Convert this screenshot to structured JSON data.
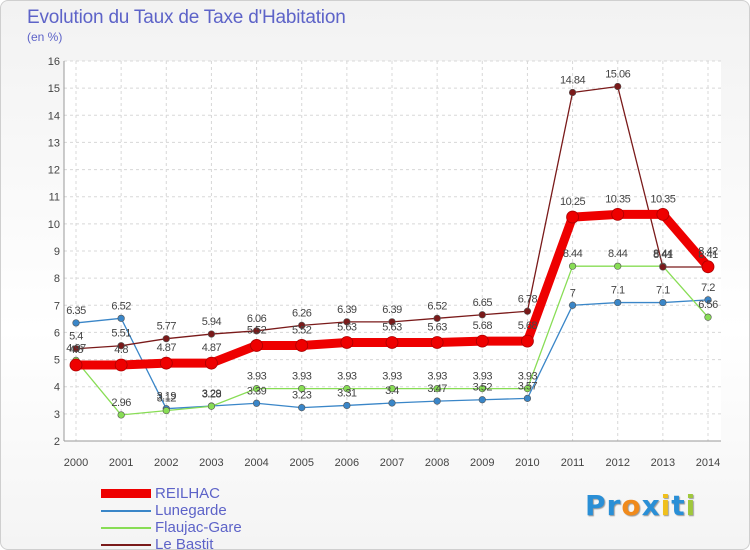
{
  "title": "Evolution du Taux de Taxe d'Habitation",
  "unit_label": "(en %)",
  "logo": {
    "letters": [
      "P",
      "r",
      "o",
      "x",
      "i",
      "t",
      "i"
    ],
    "colors": [
      "#2a8fd6",
      "#2a8fd6",
      "#f08a1c",
      "#2a8fd6",
      "#f0c01c",
      "#2a8fd6",
      "#a0c83c"
    ]
  },
  "chart_data": {
    "type": "line",
    "title": "Evolution du Taux de Taxe d'Habitation",
    "ylabel": "(en %)",
    "xlabel": "",
    "ylim": [
      2,
      16
    ],
    "yticks": [
      2,
      3,
      4,
      5,
      6,
      7,
      8,
      9,
      10,
      11,
      12,
      13,
      14,
      15,
      16
    ],
    "x": [
      "2000",
      "2001",
      "2002",
      "2003",
      "2004",
      "2005",
      "2006",
      "2007",
      "2008",
      "2009",
      "2010",
      "2011",
      "2012",
      "2013",
      "2014"
    ],
    "grid": true,
    "legend_position": "bottom-left",
    "series": [
      {
        "name": "REILHAC",
        "color": "#ee0000",
        "values": [
          4.8,
          4.8,
          4.87,
          4.87,
          5.52,
          5.52,
          5.63,
          5.63,
          5.63,
          5.68,
          5.68,
          10.25,
          10.35,
          10.35,
          8.42
        ],
        "labels": [
          "4.8",
          "4.8",
          "4.87",
          "4.87",
          "5.52",
          "5.52",
          "5.63",
          "5.63",
          "5.63",
          "5.68",
          "5.68",
          "10.25",
          "10.35",
          "10.35",
          "8.42"
        ]
      },
      {
        "name": "Lunegarde",
        "color": "#3a86c8",
        "values": [
          6.35,
          6.52,
          3.19,
          3.29,
          3.39,
          3.23,
          3.31,
          3.4,
          3.47,
          3.52,
          3.57,
          7,
          7.1,
          7.1,
          7.2
        ],
        "labels": [
          "6.35",
          "6.52",
          "3.19",
          "3.29",
          "3.39",
          "3.23",
          "3.31",
          "3.4",
          "3.47",
          "3.52",
          "3.57",
          "7",
          "7.1",
          "7.1",
          "7.2"
        ]
      },
      {
        "name": "Flaujac-Gare",
        "color": "#88dd55",
        "values": [
          4.97,
          2.96,
          3.12,
          3.28,
          3.93,
          3.93,
          3.93,
          3.93,
          3.93,
          3.93,
          3.93,
          8.44,
          8.44,
          8.44,
          6.56
        ],
        "labels": [
          "4.97",
          "2.96",
          "3.12",
          "3.28",
          "3.93",
          "3.93",
          "3.93",
          "3.93",
          "3.93",
          "3.93",
          "3.93",
          "8.44",
          "8.44",
          "8.44",
          "6.56"
        ]
      },
      {
        "name": "Le Bastit",
        "color": "#7a1a1a",
        "values": [
          5.4,
          5.51,
          5.77,
          5.94,
          6.06,
          6.26,
          6.39,
          6.39,
          6.52,
          6.65,
          6.78,
          14.84,
          15.06,
          8.41,
          8.41
        ],
        "labels": [
          "5.4",
          "5.51",
          "5.77",
          "5.94",
          "6.06",
          "6.26",
          "6.39",
          "6.39",
          "6.52",
          "6.65",
          "6.78",
          "14.84",
          "15.06",
          "8.41",
          "8.41"
        ]
      }
    ]
  }
}
